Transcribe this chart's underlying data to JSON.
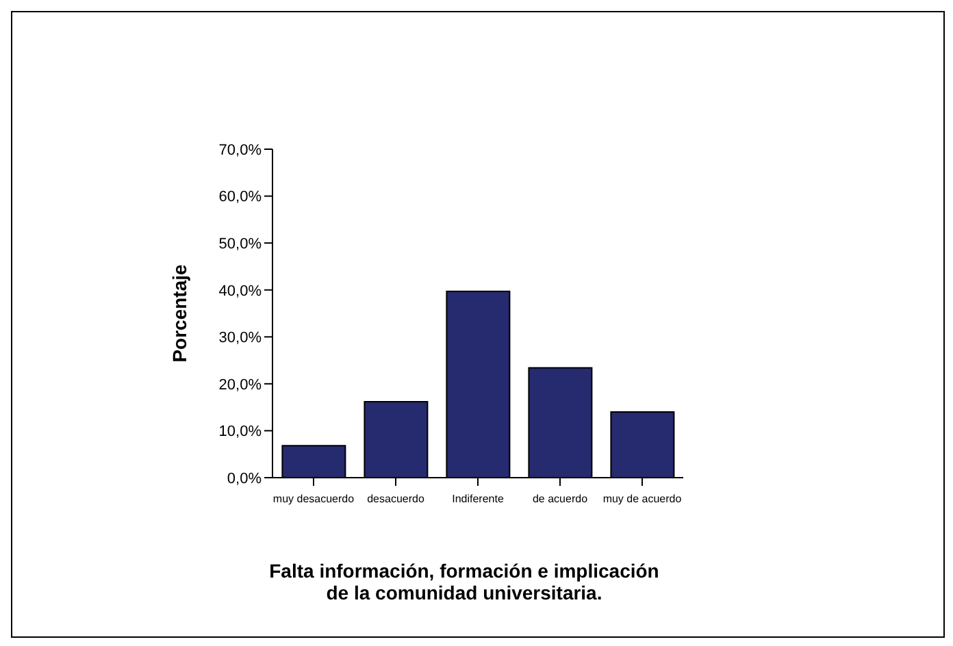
{
  "chart_data": {
    "type": "bar",
    "xlabel": "Falta información, formación e implicación de la comunidad universitaria.",
    "ylabel": "Porcentaje",
    "categories": [
      "muy desacuerdo",
      "desacuerdo",
      "Indiferente",
      "de acuerdo",
      "muy de acuerdo"
    ],
    "values": [
      6.8,
      16.2,
      39.7,
      23.4,
      14.0
    ],
    "color": "#262a6e",
    "ylim": [
      0,
      70
    ],
    "yticks": [
      {
        "value": 0,
        "label": "0,0%"
      },
      {
        "value": 10,
        "label": "10,0%"
      },
      {
        "value": 20,
        "label": "20,0%"
      },
      {
        "value": 30,
        "label": "30,0%"
      },
      {
        "value": 40,
        "label": "40,0%"
      },
      {
        "value": 50,
        "label": "50,0%"
      },
      {
        "value": 60,
        "label": "60,0%"
      },
      {
        "value": 70,
        "label": "70,0%"
      }
    ],
    "grid": false,
    "legend": false
  }
}
